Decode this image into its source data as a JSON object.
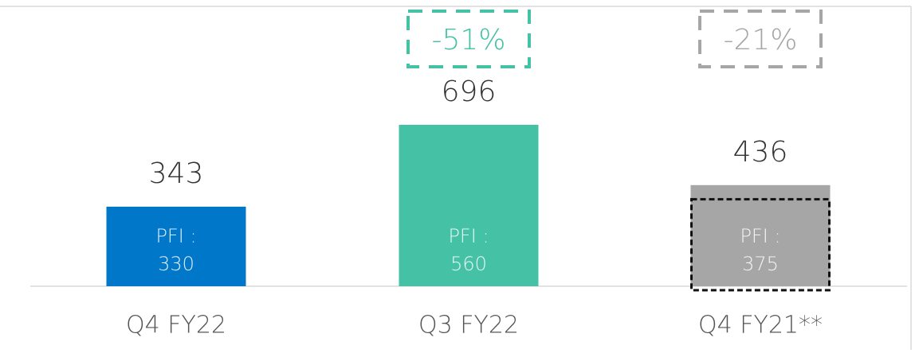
{
  "chart_data": {
    "type": "bar",
    "categories": [
      "Q4 FY22",
      "Q3 FY22",
      "Q4 FY21**"
    ],
    "values": [
      343,
      696,
      436
    ],
    "colors": [
      "#0077c8",
      "#45c2a5",
      "#a6a6a6"
    ],
    "pfi_label": "PFI :",
    "pfi_values": [
      330,
      560,
      375
    ],
    "pfi_outline": [
      false,
      false,
      true
    ],
    "annotations": [
      {
        "category": "Q3 FY22",
        "text": "-51%",
        "color": "#45c2a5"
      },
      {
        "category": "Q4 FY21**",
        "text": "-21%",
        "color": "#a6a6a6"
      }
    ]
  }
}
